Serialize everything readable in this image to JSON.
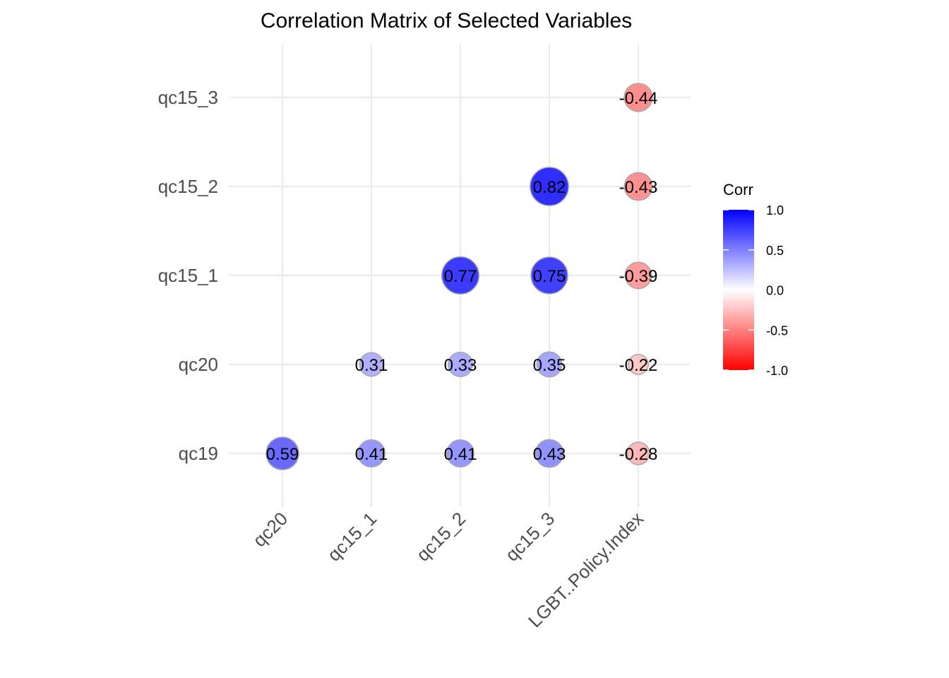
{
  "chart_data": {
    "type": "correlation-bubble-matrix",
    "title": "Correlation Matrix of Selected Variables",
    "x_categories": [
      "qc20",
      "qc15_1",
      "qc15_2",
      "qc15_3",
      "LGBT..Policy.Index"
    ],
    "y_categories": [
      "qc19",
      "qc20",
      "qc15_1",
      "qc15_2",
      "qc15_3"
    ],
    "cells": [
      {
        "x": "qc20",
        "y": "qc19",
        "value": 0.59,
        "label": "0.59"
      },
      {
        "x": "qc15_1",
        "y": "qc19",
        "value": 0.41,
        "label": "0.41"
      },
      {
        "x": "qc15_2",
        "y": "qc19",
        "value": 0.41,
        "label": "0.41"
      },
      {
        "x": "qc15_3",
        "y": "qc19",
        "value": 0.43,
        "label": "0.43"
      },
      {
        "x": "LGBT..Policy.Index",
        "y": "qc19",
        "value": -0.28,
        "label": "-0.28"
      },
      {
        "x": "qc15_1",
        "y": "qc20",
        "value": 0.31,
        "label": "0.31"
      },
      {
        "x": "qc15_2",
        "y": "qc20",
        "value": 0.33,
        "label": "0.33"
      },
      {
        "x": "qc15_3",
        "y": "qc20",
        "value": 0.35,
        "label": "0.35"
      },
      {
        "x": "LGBT..Policy.Index",
        "y": "qc20",
        "value": -0.22,
        "label": "-0.22"
      },
      {
        "x": "qc15_2",
        "y": "qc15_1",
        "value": 0.77,
        "label": "0.77"
      },
      {
        "x": "qc15_3",
        "y": "qc15_1",
        "value": 0.75,
        "label": "0.75"
      },
      {
        "x": "LGBT..Policy.Index",
        "y": "qc15_1",
        "value": -0.39,
        "label": "-0.39"
      },
      {
        "x": "qc15_3",
        "y": "qc15_2",
        "value": 0.82,
        "label": "0.82"
      },
      {
        "x": "LGBT..Policy.Index",
        "y": "qc15_2",
        "value": -0.43,
        "label": "-0.43"
      },
      {
        "x": "LGBT..Policy.Index",
        "y": "qc15_3",
        "value": -0.44,
        "label": "-0.44"
      }
    ],
    "legend": {
      "title": "Corr",
      "position": "right",
      "range": [
        -1,
        1
      ],
      "ticks": [
        {
          "value": 1.0,
          "label": "1.0"
        },
        {
          "value": 0.5,
          "label": "0.5"
        },
        {
          "value": 0.0,
          "label": "0.0"
        },
        {
          "value": -0.5,
          "label": "-0.5"
        },
        {
          "value": -1.0,
          "label": "-1.0"
        }
      ]
    },
    "colors": {
      "high": "#0000ff",
      "mid": "#ffffff",
      "low": "#ff0000",
      "grid": "#ebebeb",
      "circle_outline": "#a8a8a8"
    },
    "grid": true
  }
}
